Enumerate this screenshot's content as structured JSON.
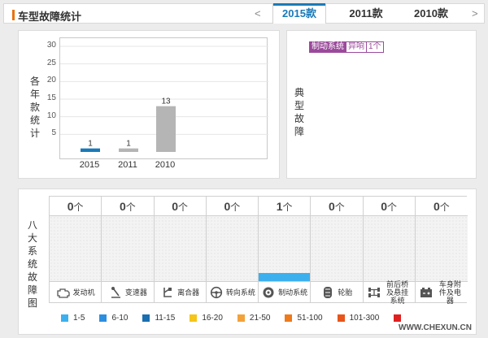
{
  "header": {
    "title": "车型故障统计",
    "prev_arrow": "<",
    "next_arrow": ">",
    "tabs": [
      {
        "label": "2015款",
        "active": true
      },
      {
        "label": "2011款",
        "active": false
      },
      {
        "label": "2010款",
        "active": false
      }
    ]
  },
  "per_year": {
    "label": "各年款统计",
    "chart_data": {
      "type": "bar",
      "categories": [
        "2015",
        "2011",
        "2010"
      ],
      "values": [
        1,
        1,
        13
      ],
      "ylim": [
        0,
        30
      ],
      "yticks": [
        5,
        10,
        15,
        20,
        25,
        30
      ],
      "bar_colors": [
        "#1a7ab8",
        "#b5b5b5",
        "#b5b5b5"
      ],
      "data_labels": [
        "1",
        "1",
        "13"
      ]
    }
  },
  "typical": {
    "label": "典型故障",
    "tags": [
      "制动系统",
      "异响",
      "1个"
    ]
  },
  "systems": {
    "label": "八大系统故障图",
    "unit": "个",
    "max_value": 5,
    "items": [
      {
        "name": "发动机",
        "count": "0",
        "value": 0,
        "icon": "engine-icon"
      },
      {
        "name": "变速器",
        "count": "0",
        "value": 0,
        "icon": "gear-shift-icon"
      },
      {
        "name": "离合器",
        "count": "0",
        "value": 0,
        "icon": "clutch-pedal-icon"
      },
      {
        "name": "转向系统",
        "count": "0",
        "value": 0,
        "icon": "steering-wheel-icon"
      },
      {
        "name": "制动系统",
        "count": "1",
        "value": 1,
        "icon": "brake-disc-icon"
      },
      {
        "name": "轮胎",
        "count": "0",
        "value": 0,
        "icon": "tire-icon"
      },
      {
        "name": "前后桥及悬挂系统",
        "count": "0",
        "value": 0,
        "icon": "axle-suspension-icon"
      },
      {
        "name": "车身附件及电器",
        "count": "0",
        "value": 0,
        "icon": "car-battery-icon"
      }
    ]
  },
  "legend": [
    {
      "label": "1-5",
      "color": "#3cb0ee"
    },
    {
      "label": "6-10",
      "color": "#2b8fe0"
    },
    {
      "label": "11-15",
      "color": "#1a6fb0"
    },
    {
      "label": "16-20",
      "color": "#f5c518"
    },
    {
      "label": "21-50",
      "color": "#f3a23a"
    },
    {
      "label": "51-100",
      "color": "#ee7a1c"
    },
    {
      "label": "101-300",
      "color": "#e8551a"
    },
    {
      "label": "",
      "color": "#e02020"
    }
  ],
  "watermark": "WWW.CHEXUN.CN"
}
